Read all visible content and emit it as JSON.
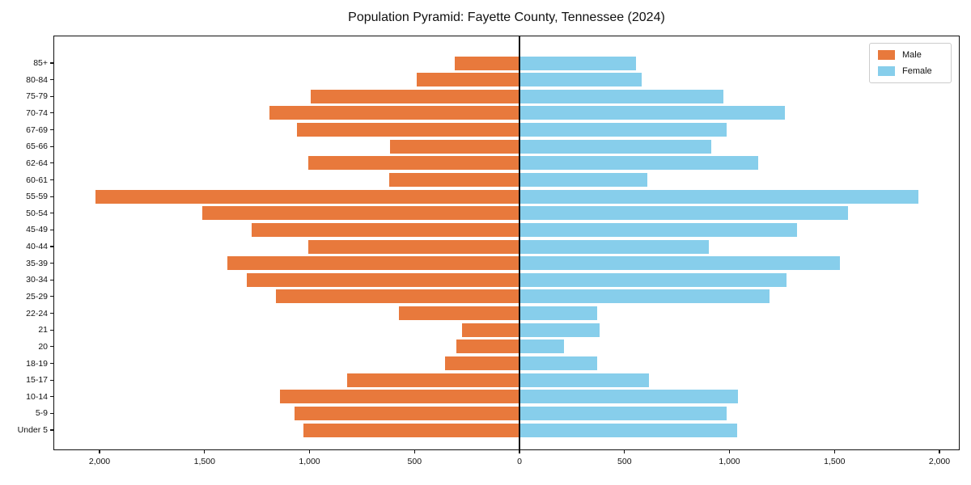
{
  "title": "Population Pyramid: Fayette County, Tennessee (2024)",
  "legend": {
    "male_label": "Male",
    "female_label": "Female"
  },
  "colors": {
    "male": "#E8793C",
    "female": "#87CEEB",
    "spine": "#111111",
    "legend_border": "#cccccc",
    "background": "#ffffff"
  },
  "chart_data": {
    "type": "bar",
    "subtype": "population-pyramid",
    "title": "Population Pyramid: Fayette County, Tennessee (2024)",
    "xlabel": "",
    "ylabel": "",
    "legend_position": "upper-right",
    "grid": false,
    "categories_top_to_bottom": [
      "85+",
      "80-84",
      "75-79",
      "70-74",
      "67-69",
      "65-66",
      "62-64",
      "60-61",
      "55-59",
      "50-54",
      "45-49",
      "40-44",
      "35-39",
      "30-34",
      "25-29",
      "22-24",
      "21",
      "20",
      "18-19",
      "15-17",
      "10-14",
      "5-9",
      "Under 5"
    ],
    "series": [
      {
        "name": "Male",
        "side": "left",
        "values": [
          310,
          490,
          995,
          1190,
          1060,
          615,
          1005,
          620,
          2020,
          1510,
          1275,
          1005,
          1390,
          1300,
          1160,
          575,
          275,
          300,
          355,
          820,
          1140,
          1070,
          1030
        ]
      },
      {
        "name": "Female",
        "side": "right",
        "values": [
          555,
          580,
          970,
          1265,
          985,
          915,
          1135,
          610,
          1900,
          1565,
          1320,
          900,
          1525,
          1270,
          1190,
          370,
          380,
          210,
          370,
          615,
          1040,
          985,
          1035
        ]
      }
    ],
    "xtick_values": [
      -2000,
      -1500,
      -1000,
      -500,
      0,
      500,
      1000,
      1500,
      2000
    ],
    "xtick_labels": [
      "2,000",
      "1,500",
      "1,000",
      "500",
      "0",
      "500",
      "1,000",
      "1,500",
      "2,000"
    ],
    "xlim_per_side": [
      2215,
      2100
    ]
  }
}
